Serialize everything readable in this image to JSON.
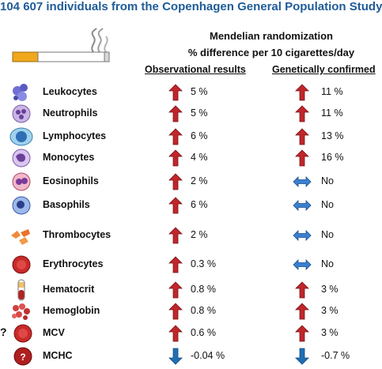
{
  "title": "104 607 individuals from the Copenhagen General Population Study",
  "subtitle_line1": "Mendelian randomization",
  "subtitle_line2": "% difference per 10 cigarettes/day",
  "col_observational": "Observational results",
  "col_genetic": "Genetically confirmed",
  "colors": {
    "title": "#1f5c99",
    "up_arrow": "#c0262c",
    "down_arrow": "#1f6fb5",
    "flat_arrow": "#3a7fd0"
  },
  "rows": [
    {
      "name": "Leukocytes",
      "icon": "leukocyte-icon",
      "obs_dir": "up",
      "obs_val": "5 %",
      "gen_dir": "up",
      "gen_val": "11 %"
    },
    {
      "name": "Neutrophils",
      "icon": "neutrophil-icon",
      "obs_dir": "up",
      "obs_val": "5 %",
      "gen_dir": "up",
      "gen_val": "11 %"
    },
    {
      "name": "Lymphocytes",
      "icon": "lymphocyte-icon",
      "obs_dir": "up",
      "obs_val": "6 %",
      "gen_dir": "up",
      "gen_val": "13 %"
    },
    {
      "name": "Monocytes",
      "icon": "monocyte-icon",
      "obs_dir": "up",
      "obs_val": "4 %",
      "gen_dir": "up",
      "gen_val": "16 %"
    },
    {
      "name": "Eosinophils",
      "icon": "eosinophil-icon",
      "obs_dir": "up",
      "obs_val": "2 %",
      "gen_dir": "flat",
      "gen_val": "No"
    },
    {
      "name": "Basophils",
      "icon": "basophil-icon",
      "obs_dir": "up",
      "obs_val": "6 %",
      "gen_dir": "flat",
      "gen_val": "No"
    },
    {
      "name": "Thrombocytes",
      "icon": "thrombocyte-icon",
      "obs_dir": "up",
      "obs_val": "2 %",
      "gen_dir": "flat",
      "gen_val": "No"
    },
    {
      "name": "Erythrocytes",
      "icon": "erythrocyte-icon",
      "obs_dir": "up",
      "obs_val": "0.3 %",
      "gen_dir": "flat",
      "gen_val": "No"
    },
    {
      "name": "Hematocrit",
      "icon": "hematocrit-tube-icon",
      "obs_dir": "up",
      "obs_val": "0.8 %",
      "gen_dir": "up",
      "gen_val": "3 %"
    },
    {
      "name": "Hemoglobin",
      "icon": "hemoglobin-icon",
      "obs_dir": "up",
      "obs_val": "0.8 %",
      "gen_dir": "up",
      "gen_val": "3 %"
    },
    {
      "name": "MCV",
      "icon": "mcv-cell-icon",
      "obs_dir": "up",
      "obs_val": "0.6 %",
      "gen_dir": "up",
      "gen_val": "3 %"
    },
    {
      "name": "MCHC",
      "icon": "mchc-cell-icon",
      "obs_dir": "down",
      "obs_val": "-0.04 %",
      "gen_dir": "down",
      "gen_val": "-0.7 %"
    }
  ],
  "mcv_marker": "?",
  "mchc_icon_text": "?"
}
